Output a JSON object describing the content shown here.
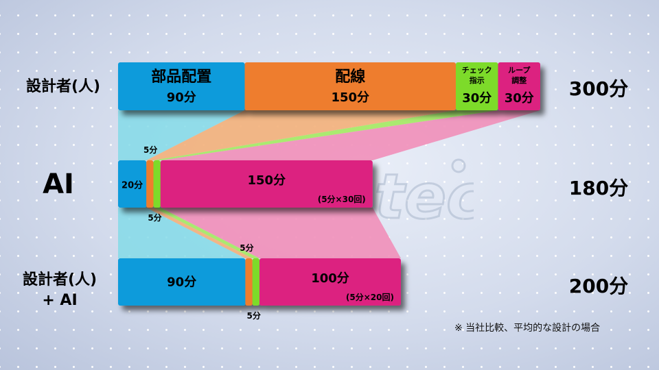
{
  "colors": {
    "placement": "#0b9bdb",
    "wiring": "#ee7d2d",
    "check": "#7ddb2b",
    "loop": "#dc2480",
    "guide_cyan": "#84dbe8",
    "guide_orange": "#f3b07a",
    "guide_green": "#a4ea62",
    "guide_pink": "#f18fb9"
  },
  "watermark": "tech",
  "note": "※ 当社比較、平均的な設計の場合",
  "chart_data": {
    "type": "bar",
    "orientation": "horizontal",
    "stacked": true,
    "unit": "分",
    "rows": [
      {
        "label_lines": [
          "設計者(人)"
        ],
        "total_label": "300分",
        "total": 300,
        "segments": [
          {
            "key": "placement",
            "value": 90,
            "lines": [
              "部品配置",
              "90分"
            ]
          },
          {
            "key": "wiring",
            "value": 150,
            "lines": [
              "配線",
              "150分"
            ]
          },
          {
            "key": "check",
            "value": 30,
            "lines": [
              "チェック",
              "指示",
              "30分"
            ]
          },
          {
            "key": "loop",
            "value": 30,
            "lines": [
              "ループ",
              "調整",
              "30分"
            ]
          }
        ]
      },
      {
        "label_lines": [
          "AI"
        ],
        "total_label": "180分",
        "total": 180,
        "segments": [
          {
            "key": "placement",
            "value": 20,
            "lines": [
              "20分"
            ]
          },
          {
            "key": "wiring",
            "value": 5,
            "lines": [
              "5分"
            ]
          },
          {
            "key": "check",
            "value": 5,
            "lines": [
              "5分"
            ]
          },
          {
            "key": "loop",
            "value": 150,
            "lines": [
              "150分",
              "(5分×30回)"
            ]
          }
        ]
      },
      {
        "label_lines": [
          "設計者(人)",
          "+ AI"
        ],
        "total_label": "200分",
        "total": 200,
        "segments": [
          {
            "key": "placement",
            "value": 90,
            "lines": [
              "90分"
            ]
          },
          {
            "key": "wiring",
            "value": 5,
            "lines": [
              "5分"
            ]
          },
          {
            "key": "check",
            "value": 5,
            "lines": [
              "5分"
            ]
          },
          {
            "key": "loop",
            "value": 100,
            "lines": [
              "100分",
              "(5分×20回)"
            ]
          }
        ]
      }
    ]
  }
}
